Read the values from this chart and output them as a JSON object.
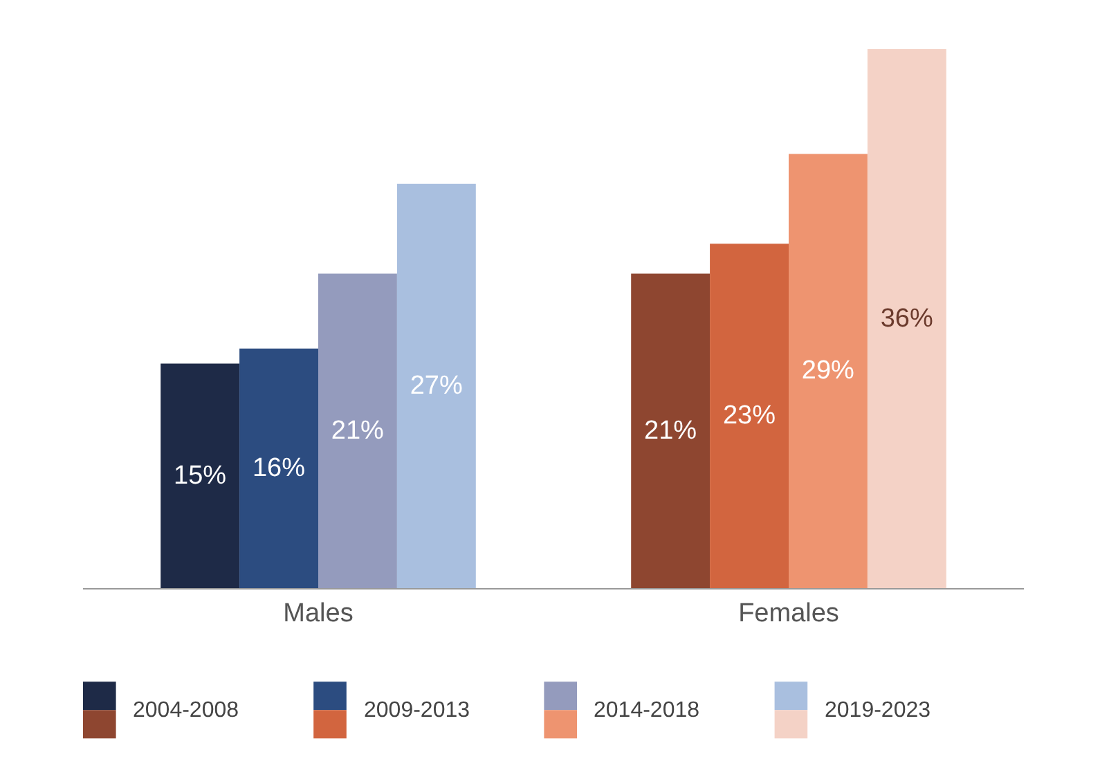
{
  "chart_data": {
    "type": "bar",
    "categories": [
      "Males",
      "Females"
    ],
    "series": [
      {
        "name": "2004-2008",
        "colors": [
          "#1e2a47",
          "#8e4630"
        ],
        "values": [
          15,
          21
        ],
        "value_labels": [
          "15%",
          "21%"
        ]
      },
      {
        "name": "2009-2013",
        "colors": [
          "#2c4c80",
          "#d2653f"
        ],
        "values": [
          16,
          23
        ],
        "value_labels": [
          "16%",
          "23%"
        ]
      },
      {
        "name": "2014-2018",
        "colors": [
          "#949bbd",
          "#ee9470"
        ],
        "values": [
          21,
          29
        ],
        "value_labels": [
          "21%",
          "29%"
        ]
      },
      {
        "name": "2019-2023",
        "colors": [
          "#a9bfdf",
          "#f4d2c6"
        ],
        "values": [
          27,
          36
        ],
        "value_labels": [
          "27%",
          "36%"
        ]
      }
    ],
    "legend": "bottom",
    "tick_labels": "x"
  }
}
